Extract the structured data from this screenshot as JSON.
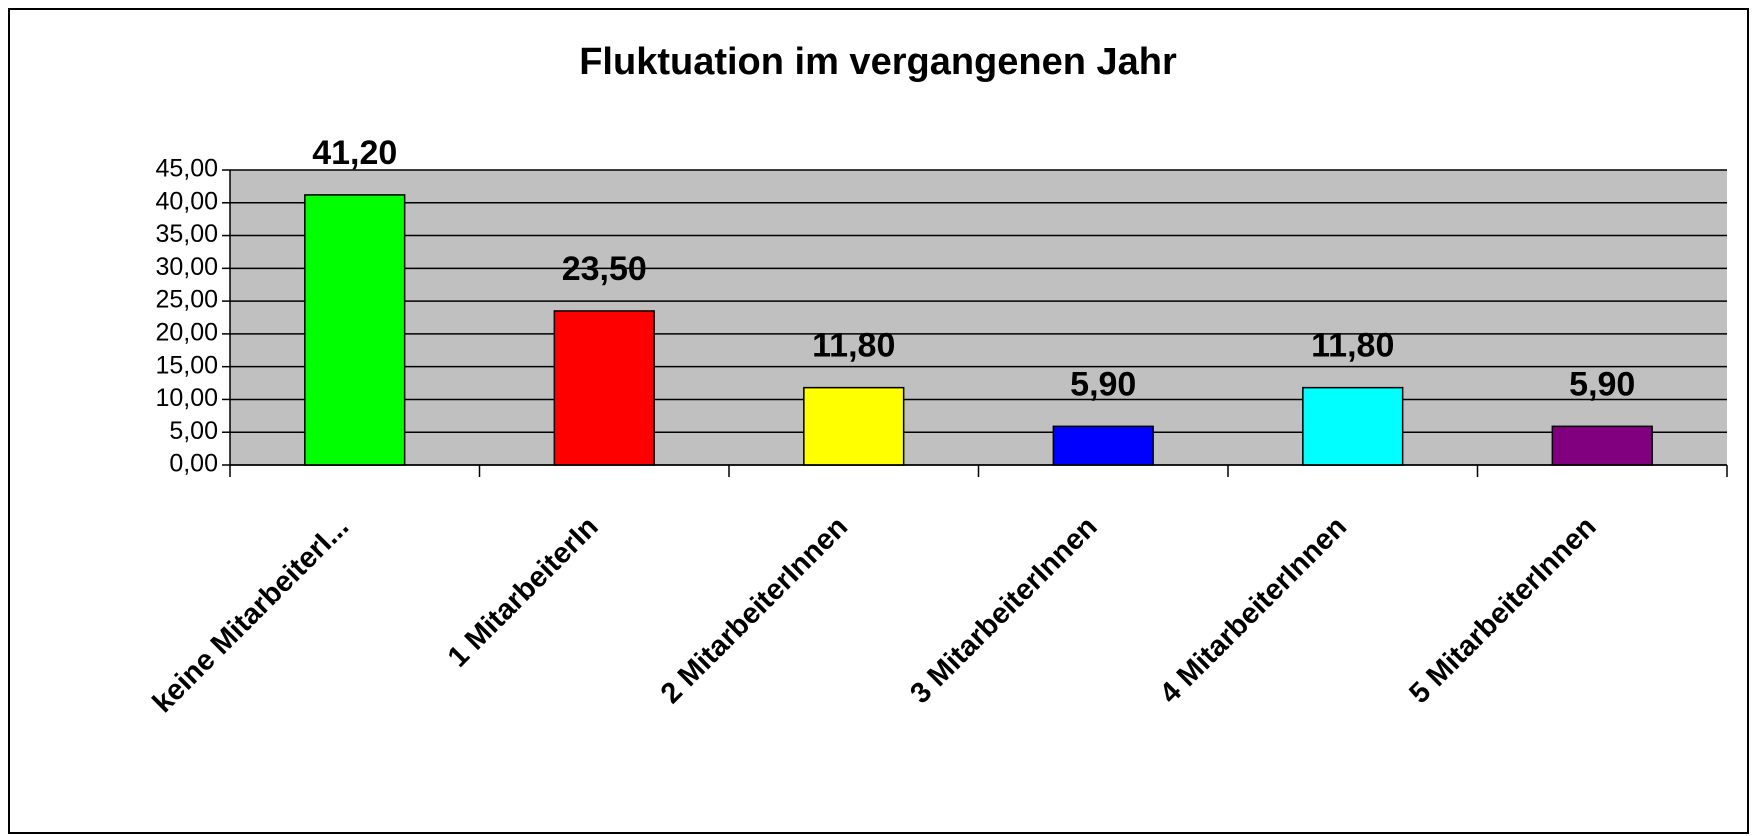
{
  "chart_data": {
    "type": "bar",
    "title": "Fluktuation im vergangenen Jahr",
    "categories": [
      "keine MitarbeiterI...",
      "1 MitarbeiterIn",
      "2 MitarbeiterInnen",
      "3 MitarbeiterInnen",
      "4 MitarbeiterInnen",
      "5 MitarbeiterInnen"
    ],
    "values": [
      41.2,
      23.5,
      11.8,
      5.9,
      11.8,
      5.9
    ],
    "value_labels": [
      "41,20",
      "23,50",
      "11,80",
      "5,90",
      "11,80",
      "5,90"
    ],
    "colors": [
      "#00ff00",
      "#ff0000",
      "#ffff00",
      "#0000ff",
      "#00ffff",
      "#800080"
    ],
    "ylim": [
      0,
      45
    ],
    "yticks": [
      {
        "value": 0,
        "label": "0,00"
      },
      {
        "value": 5,
        "label": "5,00"
      },
      {
        "value": 10,
        "label": "10,00"
      },
      {
        "value": 15,
        "label": "15,00"
      },
      {
        "value": 20,
        "label": "20,00"
      },
      {
        "value": 25,
        "label": "25,00"
      },
      {
        "value": 30,
        "label": "30,00"
      },
      {
        "value": 35,
        "label": "35,00"
      },
      {
        "value": 40,
        "label": "40,00"
      },
      {
        "value": 45,
        "label": "45,00"
      }
    ],
    "grid": true
  }
}
